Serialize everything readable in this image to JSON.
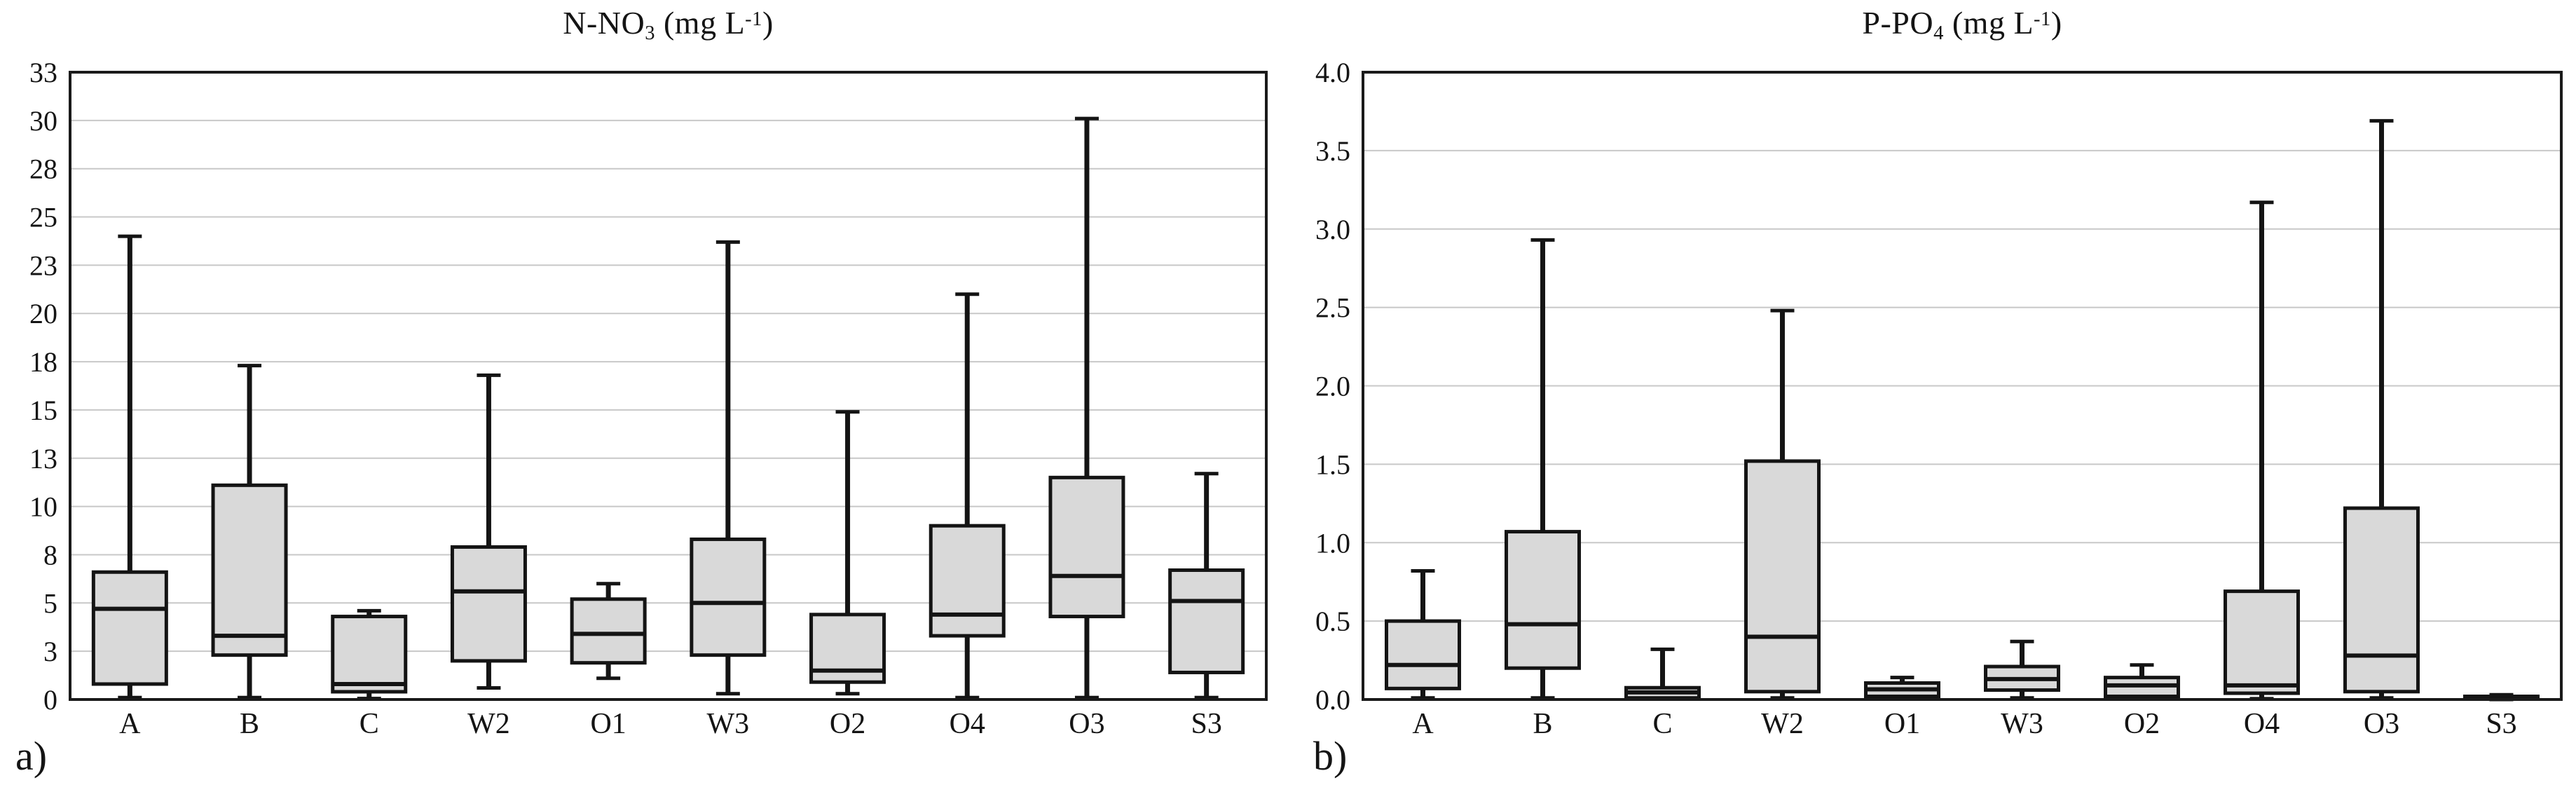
{
  "figure": {
    "background": "#ffffff",
    "box_fill": "#d9d9d9",
    "box_stroke": "#141414",
    "gridline_color": "#c8c8c8",
    "border_color": "#1a1a1a"
  },
  "chart_data": [
    {
      "type": "boxplot",
      "panel_label": "a)",
      "title": "N-NO3 (mg L-1)",
      "title_parts": {
        "main": "N-NO",
        "sub": "3",
        "mid": " (mg L",
        "sup": "-1",
        "end": ")"
      },
      "grid": true,
      "legend": "none",
      "ylim": [
        0,
        32.5
      ],
      "ytick_labels": [
        "0",
        "3",
        "5",
        "8",
        "10",
        "13",
        "15",
        "18",
        "20",
        "23",
        "25",
        "28",
        "30",
        "33"
      ],
      "categories": [
        "A",
        "B",
        "C",
        "W2",
        "O1",
        "W3",
        "O2",
        "O4",
        "O3",
        "S3"
      ],
      "boxes": [
        {
          "category": "A",
          "min": 0.1,
          "q1": 0.8,
          "median": 4.7,
          "q3": 6.6,
          "max": 24.0
        },
        {
          "category": "B",
          "min": 0.1,
          "q1": 2.3,
          "median": 3.3,
          "q3": 11.1,
          "max": 17.3
        },
        {
          "category": "C",
          "min": 0.05,
          "q1": 0.4,
          "median": 0.8,
          "q3": 4.3,
          "max": 4.6
        },
        {
          "category": "W2",
          "min": 0.6,
          "q1": 2.0,
          "median": 5.6,
          "q3": 7.9,
          "max": 16.8
        },
        {
          "category": "O1",
          "min": 1.1,
          "q1": 1.9,
          "median": 3.4,
          "q3": 5.2,
          "max": 6.0
        },
        {
          "category": "W3",
          "min": 0.3,
          "q1": 2.3,
          "median": 5.0,
          "q3": 8.3,
          "max": 23.7
        },
        {
          "category": "O2",
          "min": 0.3,
          "q1": 0.9,
          "median": 1.5,
          "q3": 4.4,
          "max": 14.9
        },
        {
          "category": "O4",
          "min": 0.1,
          "q1": 3.3,
          "median": 4.4,
          "q3": 9.0,
          "max": 21.0
        },
        {
          "category": "O3",
          "min": 0.1,
          "q1": 4.3,
          "median": 6.4,
          "q3": 11.5,
          "max": 30.1
        },
        {
          "category": "S3",
          "min": 0.1,
          "q1": 1.4,
          "median": 5.1,
          "q3": 6.7,
          "max": 11.7
        }
      ]
    },
    {
      "type": "boxplot",
      "panel_label": "b)",
      "title": "P-PO4 (mg L-1)",
      "title_parts": {
        "main": "P-PO",
        "sub": "4",
        "mid": " (mg L",
        "sup": "-1",
        "end": ")"
      },
      "grid": true,
      "legend": "none",
      "ylim": [
        0,
        4.0
      ],
      "ytick_labels": [
        "0.0",
        "0.5",
        "1.0",
        "1.5",
        "2.0",
        "2.5",
        "3.0",
        "3.5",
        "4.0"
      ],
      "categories": [
        "A",
        "B",
        "C",
        "W2",
        "O1",
        "W3",
        "O2",
        "O4",
        "O3",
        "S3"
      ],
      "boxes": [
        {
          "category": "A",
          "min": 0.01,
          "q1": 0.07,
          "median": 0.22,
          "q3": 0.5,
          "max": 0.82
        },
        {
          "category": "B",
          "min": 0.01,
          "q1": 0.2,
          "median": 0.48,
          "q3": 1.07,
          "max": 2.93
        },
        {
          "category": "C",
          "min": 0.005,
          "q1": 0.01,
          "median": 0.045,
          "q3": 0.075,
          "max": 0.32
        },
        {
          "category": "W2",
          "min": 0.01,
          "q1": 0.05,
          "median": 0.4,
          "q3": 1.52,
          "max": 2.48
        },
        {
          "category": "O1",
          "min": 0.005,
          "q1": 0.02,
          "median": 0.065,
          "q3": 0.105,
          "max": 0.14
        },
        {
          "category": "W3",
          "min": 0.01,
          "q1": 0.06,
          "median": 0.13,
          "q3": 0.21,
          "max": 0.37
        },
        {
          "category": "O2",
          "min": 0.01,
          "q1": 0.02,
          "median": 0.09,
          "q3": 0.14,
          "max": 0.22
        },
        {
          "category": "O4",
          "min": 0.005,
          "q1": 0.04,
          "median": 0.09,
          "q3": 0.69,
          "max": 3.17
        },
        {
          "category": "O3",
          "min": 0.01,
          "q1": 0.05,
          "median": 0.28,
          "q3": 1.22,
          "max": 3.69
        },
        {
          "category": "S3",
          "min": 0.0,
          "q1": 0.003,
          "median": 0.01,
          "q3": 0.02,
          "max": 0.03
        }
      ]
    }
  ]
}
